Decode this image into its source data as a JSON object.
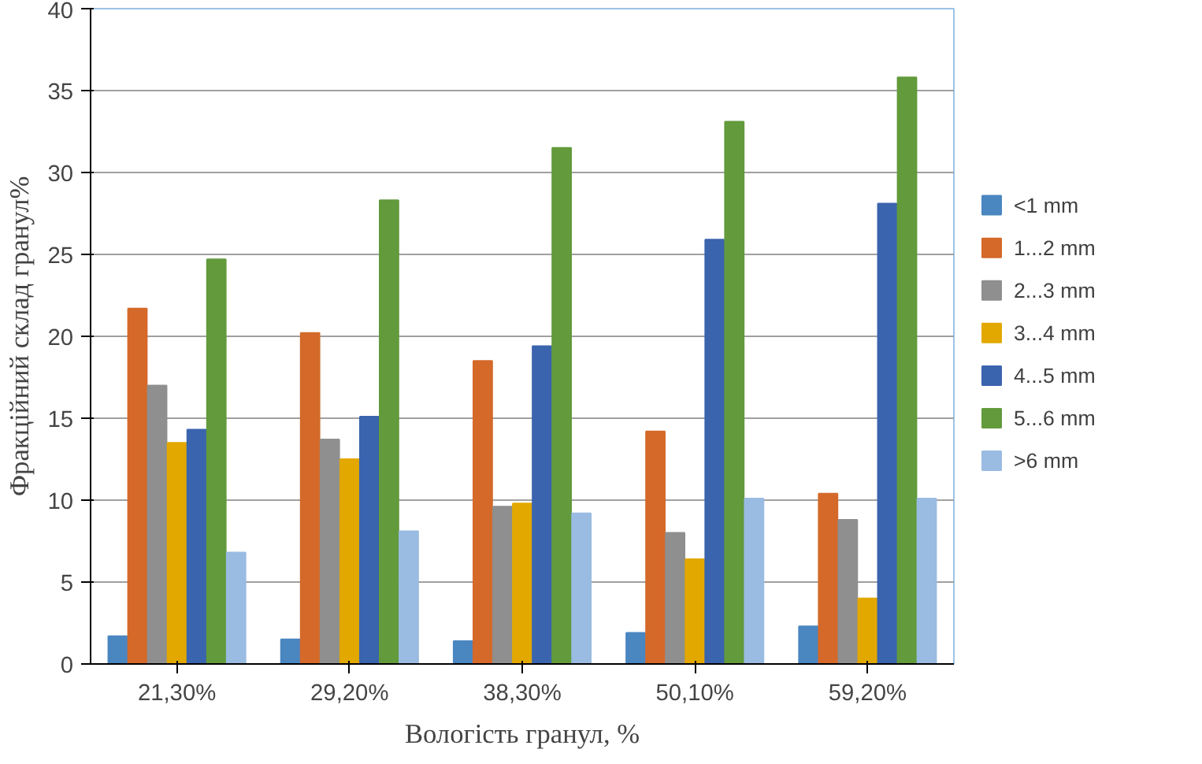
{
  "chart_data": {
    "type": "bar",
    "xlabel": "Вологість гранул, %",
    "ylabel": "Фракційний склад гранул%",
    "categories": [
      "21,30%",
      "29,20%",
      "38,30%",
      "50,10%",
      "59,20%"
    ],
    "ylim": [
      0,
      40
    ],
    "yticks": [
      0,
      5,
      10,
      15,
      20,
      25,
      30,
      35,
      40
    ],
    "grid": "y",
    "legend": "right",
    "series": [
      {
        "name": "<1 mm",
        "color": "#4a86c0",
        "values": [
          1.7,
          1.5,
          1.4,
          1.9,
          2.3
        ]
      },
      {
        "name": "1...2 mm",
        "color": "#d4692a",
        "values": [
          21.7,
          20.2,
          18.5,
          14.2,
          10.4
        ]
      },
      {
        "name": "2...3 mm",
        "color": "#8f8f8f",
        "values": [
          17,
          13.7,
          9.6,
          8,
          8.8
        ]
      },
      {
        "name": "3...4 mm",
        "color": "#e2a800",
        "values": [
          13.5,
          12.5,
          9.8,
          6.4,
          4
        ]
      },
      {
        "name": "4...5 mm",
        "color": "#3a64ad",
        "values": [
          14.3,
          15.1,
          19.4,
          25.9,
          28.1
        ]
      },
      {
        "name": "5...6 mm",
        "color": "#629a3c",
        "values": [
          24.7,
          28.3,
          31.5,
          33.1,
          35.8
        ]
      },
      {
        "name": ">6 mm",
        "color": "#9abbe2",
        "values": [
          6.8,
          8.1,
          9.2,
          10.1,
          10.1
        ]
      }
    ]
  }
}
